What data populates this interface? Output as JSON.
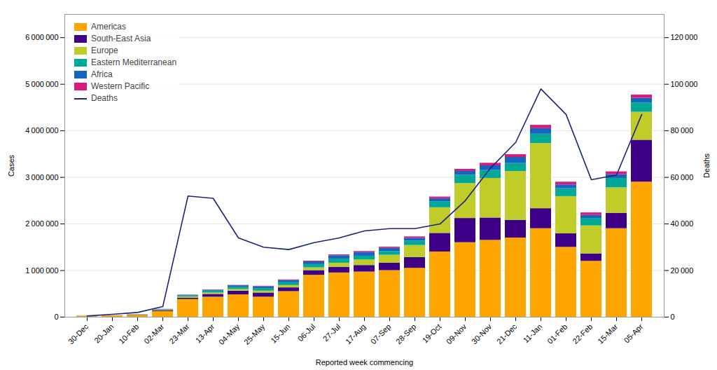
{
  "chart_data": {
    "type": "bar",
    "stacked": true,
    "categories": [
      "30-Dec",
      "20-Jan",
      "10-Feb",
      "02-Mar",
      "23-Mar",
      "13-Apr",
      "04-May",
      "25-May",
      "15-Jun",
      "06-Jul",
      "27-Jul",
      "17-Aug",
      "07-Sep",
      "28-Sep",
      "19-Oct",
      "09-Nov",
      "30-Nov",
      "21-Dec",
      "11-Jan",
      "01-Feb",
      "22-Feb",
      "15-Mar",
      "05-Apr"
    ],
    "series": [
      {
        "name": "Americas",
        "color": "#FFA500",
        "values": [
          20000,
          25000,
          40000,
          120000,
          380000,
          430000,
          480000,
          430000,
          550000,
          900000,
          950000,
          970000,
          1000000,
          1050000,
          1400000,
          1600000,
          1650000,
          1700000,
          1900000,
          1500000,
          1200000,
          1900000,
          2900000
        ]
      },
      {
        "name": "South-East Asia",
        "color": "#3D0087",
        "values": [
          2000,
          3000,
          5000,
          15000,
          30000,
          60000,
          80000,
          90000,
          80000,
          100000,
          120000,
          140000,
          160000,
          230000,
          400000,
          520000,
          480000,
          380000,
          430000,
          290000,
          160000,
          330000,
          900000
        ]
      },
      {
        "name": "Europe",
        "color": "#BFCC2A",
        "values": [
          2000,
          3000,
          5000,
          15000,
          25000,
          30000,
          35000,
          40000,
          50000,
          60000,
          90000,
          120000,
          170000,
          260000,
          550000,
          750000,
          850000,
          1050000,
          1400000,
          800000,
          600000,
          550000,
          600000
        ]
      },
      {
        "name": "Eastern Mediterranean",
        "color": "#00A896",
        "values": [
          500,
          1000,
          3000,
          10000,
          25000,
          40000,
          50000,
          55000,
          60000,
          70000,
          90000,
          80000,
          80000,
          95000,
          130000,
          180000,
          170000,
          170000,
          200000,
          170000,
          160000,
          200000,
          200000
        ]
      },
      {
        "name": "Africa",
        "color": "#1565C0",
        "values": [
          300,
          500,
          1500,
          7000,
          12000,
          20000,
          30000,
          40000,
          50000,
          60000,
          70000,
          80000,
          70000,
          60000,
          65000,
          80000,
          100000,
          130000,
          120000,
          80000,
          65000,
          80000,
          100000
        ]
      },
      {
        "name": "Western Pacific",
        "color": "#D81B7A",
        "values": [
          100,
          200,
          500,
          2000,
          4000,
          6000,
          8000,
          10000,
          12000,
          15000,
          18000,
          22000,
          25000,
          30000,
          35000,
          45000,
          55000,
          60000,
          70000,
          60000,
          55000,
          60000,
          70000
        ]
      },
      {
        "name": "Deaths",
        "type": "line",
        "axis": "y2",
        "color": "#1a237e",
        "values": [
          500,
          1200,
          2000,
          4500,
          52000,
          51000,
          34000,
          30000,
          29000,
          32000,
          34000,
          37000,
          38000,
          38000,
          40000,
          50000,
          64000,
          75000,
          98000,
          87000,
          59000,
          61000,
          87000
        ]
      }
    ],
    "xlabel": "Reported week commencing",
    "ylabel": "Cases",
    "y2label": "Deaths",
    "ylim": [
      0,
      6500000
    ],
    "yticks": [
      0,
      {
        "value": 1000000,
        "label": "1 000 000"
      },
      {
        "value": 2000000,
        "label": "2 000 000"
      },
      {
        "value": 3000000,
        "label": "3 000 000"
      },
      {
        "value": 4000000,
        "label": "4 000 000"
      },
      {
        "value": 5000000,
        "label": "5 000 000"
      },
      {
        "value": 6000000,
        "label": "6 000 000"
      }
    ],
    "y2lim": [
      0,
      130000
    ],
    "y2ticks": [
      0,
      {
        "value": 20000,
        "label": "20 000"
      },
      {
        "value": 40000,
        "label": "40 000"
      },
      {
        "value": 60000,
        "label": "60 000"
      },
      {
        "value": 80000,
        "label": "80 000"
      },
      {
        "value": 100000,
        "label": "100 000"
      },
      {
        "value": 120000,
        "label": "120 000"
      }
    ],
    "grid": true,
    "legend": "upper left"
  }
}
